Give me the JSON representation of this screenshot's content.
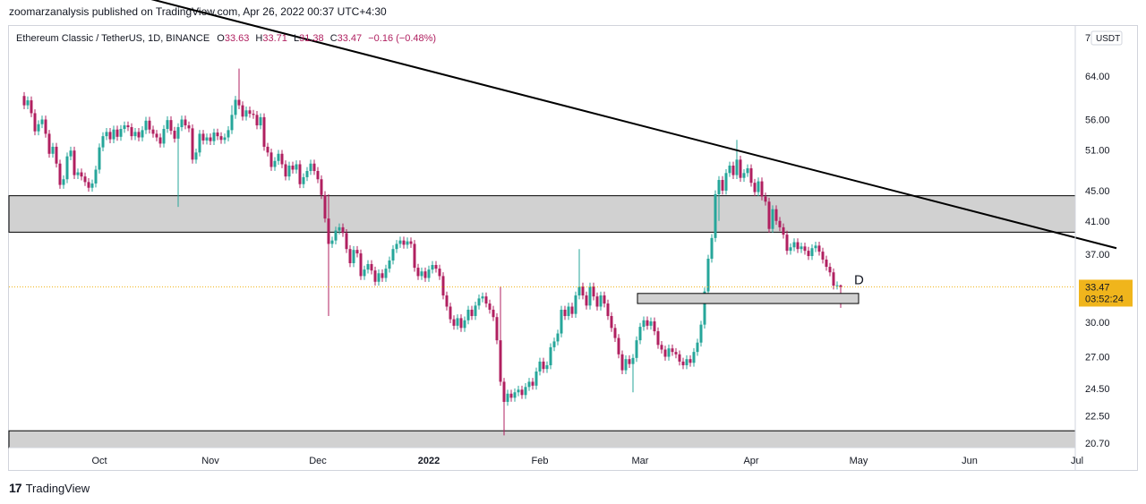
{
  "publisher_line": "zoomarzanalysis published on TradingView.com, Apr 26, 2022 00:37 UTC+4:30",
  "footer": {
    "logo_glyph": "17",
    "brand": "TradingView"
  },
  "chart_data": {
    "type": "candlestick",
    "header": {
      "symbol": "Ethereum Classic / TetherUS, 1D, BINANCE",
      "open_label": "O",
      "open": "33.63",
      "high_label": "H",
      "high": "33.71",
      "low_label": "L",
      "low": "31.38",
      "close_label": "C",
      "close": "33.47",
      "change": "−0.16 (−0.48%)"
    },
    "currency": "USDT",
    "scale": "log",
    "y_axis_ticks": [
      "64.00",
      "56.00",
      "51.00",
      "45.00",
      "41.00",
      "37.00",
      "30.00",
      "27.00",
      "24.50",
      "22.50",
      "20.70"
    ],
    "y_axis_top_partial": "7",
    "x_axis_ticks": [
      "Oct",
      "Nov",
      "Dec",
      "2022",
      "Feb",
      "Mar",
      "Apr",
      "May",
      "Jun",
      "Jul"
    ],
    "last_price_label": "33.47",
    "countdown_label": "03:52:24",
    "annotation_label": "D",
    "zones": [
      {
        "name": "resistance-zone",
        "low": 39.6,
        "high": 44.3
      },
      {
        "name": "support-zone",
        "low": 19.7,
        "high": 21.5
      }
    ],
    "small_box": {
      "start": "2022-03-01",
      "end": "2022-05-01",
      "low": 31.8,
      "high": 32.8
    },
    "trendline": {
      "start_date": "2021-09-01",
      "start_price": 92,
      "end_date": "2022-07-12",
      "end_price": 37.7
    },
    "colors": {
      "up": "#26a69a",
      "down": "#b02060",
      "wick": "#444444",
      "zone": "#d1d1d1",
      "last_price": "#f0b51c",
      "trendline": "#000000"
    },
    "candles": [
      [
        "2021-09-10",
        60.2,
        58.5
      ],
      [
        "2021-09-11",
        58.5,
        59.4
      ],
      [
        "2021-09-12",
        59.4,
        57.1
      ],
      [
        "2021-09-13",
        57.1,
        54.0
      ],
      [
        "2021-09-14",
        54.0,
        55.2
      ],
      [
        "2021-09-15",
        55.2,
        56.0
      ],
      [
        "2021-09-16",
        56.0,
        53.6
      ],
      [
        "2021-09-17",
        53.6,
        50.4
      ],
      [
        "2021-09-18",
        50.4,
        51.5
      ],
      [
        "2021-09-19",
        51.5,
        48.9
      ],
      [
        "2021-09-20",
        48.9,
        45.8
      ],
      [
        "2021-09-21",
        45.8,
        46.6
      ],
      [
        "2021-09-22",
        46.6,
        50.0
      ],
      [
        "2021-09-23",
        50.0,
        50.9
      ],
      [
        "2021-09-24",
        50.9,
        47.2
      ],
      [
        "2021-09-25",
        47.2,
        47.6
      ],
      [
        "2021-09-26",
        47.6,
        47.0
      ],
      [
        "2021-09-27",
        47.0,
        46.2
      ],
      [
        "2021-09-28",
        46.2,
        45.4
      ],
      [
        "2021-09-29",
        45.4,
        46.0
      ],
      [
        "2021-09-30",
        46.0,
        48.0
      ],
      [
        "2021-10-01",
        48.0,
        51.4
      ],
      [
        "2021-10-02",
        51.4,
        53.2
      ],
      [
        "2021-10-03",
        53.2,
        53.9
      ],
      [
        "2021-10-04",
        53.9,
        52.7
      ],
      [
        "2021-10-05",
        52.7,
        54.3
      ],
      [
        "2021-10-06",
        54.3,
        53.1
      ],
      [
        "2021-10-07",
        53.1,
        54.4
      ],
      [
        "2021-10-08",
        54.4,
        55.0
      ],
      [
        "2021-10-09",
        55.0,
        54.7
      ],
      [
        "2021-10-10",
        54.7,
        53.2
      ],
      [
        "2021-10-11",
        53.2,
        53.9
      ],
      [
        "2021-10-12",
        53.9,
        53.0
      ],
      [
        "2021-10-13",
        53.0,
        54.2
      ],
      [
        "2021-10-14",
        54.2,
        55.8
      ],
      [
        "2021-10-15",
        55.8,
        54.3
      ],
      [
        "2021-10-16",
        54.3,
        53.6
      ],
      [
        "2021-10-17",
        53.6,
        53.0
      ],
      [
        "2021-10-18",
        53.0,
        52.0
      ],
      [
        "2021-10-19",
        52.0,
        54.4
      ],
      [
        "2021-10-20",
        54.4,
        55.9
      ],
      [
        "2021-10-21",
        55.9,
        54.1
      ],
      [
        "2021-10-22",
        54.1,
        52.8
      ],
      [
        "2021-10-23",
        52.8,
        54.7
      ],
      [
        "2021-10-24",
        54.7,
        56.0
      ],
      [
        "2021-10-25",
        56.0,
        55.0
      ],
      [
        "2021-10-26",
        55.0,
        54.5
      ],
      [
        "2021-10-27",
        54.5,
        49.5
      ],
      [
        "2021-10-28",
        49.5,
        50.6
      ],
      [
        "2021-10-29",
        50.6,
        53.6
      ],
      [
        "2021-10-30",
        53.6,
        52.5
      ],
      [
        "2021-10-31",
        52.5,
        53.0
      ],
      [
        "2021-11-01",
        53.0,
        52.4
      ],
      [
        "2021-11-02",
        52.4,
        53.8
      ],
      [
        "2021-11-03",
        53.8,
        53.2
      ],
      [
        "2021-11-04",
        53.2,
        52.6
      ],
      [
        "2021-11-05",
        52.6,
        53.0
      ],
      [
        "2021-11-06",
        53.0,
        54.2
      ],
      [
        "2021-11-07",
        54.2,
        56.8
      ],
      [
        "2021-11-08",
        56.8,
        59.5
      ],
      [
        "2021-11-09",
        59.5,
        58.5
      ],
      [
        "2021-11-10",
        58.5,
        56.5
      ],
      [
        "2021-11-11",
        56.5,
        57.6
      ],
      [
        "2021-11-12",
        57.6,
        57.0
      ],
      [
        "2021-11-13",
        57.0,
        56.8
      ],
      [
        "2021-11-14",
        56.8,
        55.0
      ],
      [
        "2021-11-15",
        55.0,
        56.4
      ],
      [
        "2021-11-16",
        56.4,
        51.5
      ],
      [
        "2021-11-17",
        51.5,
        50.6
      ],
      [
        "2021-11-18",
        50.6,
        48.4
      ],
      [
        "2021-11-19",
        48.4,
        49.3
      ],
      [
        "2021-11-20",
        49.3,
        50.4
      ],
      [
        "2021-11-21",
        50.4,
        48.8
      ],
      [
        "2021-11-22",
        48.8,
        47.0
      ],
      [
        "2021-11-23",
        47.0,
        48.6
      ],
      [
        "2021-11-24",
        48.6,
        48.0
      ],
      [
        "2021-11-25",
        48.0,
        48.8
      ],
      [
        "2021-11-26",
        48.8,
        45.9
      ],
      [
        "2021-11-27",
        45.9,
        46.9
      ],
      [
        "2021-11-28",
        46.9,
        47.8
      ],
      [
        "2021-11-29",
        47.8,
        48.9
      ],
      [
        "2021-11-30",
        48.9,
        47.8
      ],
      [
        "2021-12-01",
        47.8,
        46.6
      ],
      [
        "2021-12-02",
        46.6,
        44.4
      ],
      [
        "2021-12-03",
        44.4,
        41.3
      ],
      [
        "2021-12-04",
        41.3,
        38.2
      ],
      [
        "2021-12-05",
        38.2,
        38.6
      ],
      [
        "2021-12-06",
        38.6,
        39.8
      ],
      [
        "2021-12-07",
        39.8,
        40.2
      ],
      [
        "2021-12-08",
        40.2,
        39.5
      ],
      [
        "2021-12-09",
        39.5,
        37.6
      ],
      [
        "2021-12-10",
        37.6,
        36.0
      ],
      [
        "2021-12-11",
        36.0,
        37.5
      ],
      [
        "2021-12-12",
        37.5,
        37.1
      ],
      [
        "2021-12-13",
        37.1,
        34.6
      ],
      [
        "2021-12-14",
        34.6,
        35.3
      ],
      [
        "2021-12-15",
        35.3,
        35.9
      ],
      [
        "2021-12-16",
        35.9,
        35.2
      ],
      [
        "2021-12-17",
        35.2,
        34.0
      ],
      [
        "2021-12-18",
        34.0,
        34.9
      ],
      [
        "2021-12-19",
        34.9,
        34.4
      ],
      [
        "2021-12-20",
        34.4,
        35.4
      ],
      [
        "2021-12-21",
        35.4,
        36.3
      ],
      [
        "2021-12-22",
        36.3,
        37.6
      ],
      [
        "2021-12-23",
        37.6,
        38.2
      ],
      [
        "2021-12-24",
        38.2,
        38.6
      ],
      [
        "2021-12-25",
        38.6,
        38.1
      ],
      [
        "2021-12-26",
        38.1,
        38.5
      ],
      [
        "2021-12-27",
        38.5,
        38.2
      ],
      [
        "2021-12-28",
        38.2,
        35.5
      ],
      [
        "2021-12-29",
        35.5,
        34.6
      ],
      [
        "2021-12-30",
        34.6,
        35.1
      ],
      [
        "2021-12-31",
        35.1,
        34.4
      ],
      [
        "2022-01-01",
        34.4,
        35.3
      ],
      [
        "2022-01-02",
        35.3,
        35.8
      ],
      [
        "2022-01-03",
        35.8,
        35.4
      ],
      [
        "2022-01-04",
        35.4,
        34.6
      ],
      [
        "2022-01-05",
        34.6,
        32.6
      ],
      [
        "2022-01-06",
        32.6,
        31.5
      ],
      [
        "2022-01-07",
        31.5,
        30.3
      ],
      [
        "2022-01-08",
        30.3,
        29.7
      ],
      [
        "2022-01-09",
        29.7,
        30.4
      ],
      [
        "2022-01-10",
        30.4,
        29.5
      ],
      [
        "2022-01-11",
        29.5,
        30.2
      ],
      [
        "2022-01-12",
        30.2,
        31.2
      ],
      [
        "2022-01-13",
        31.2,
        30.6
      ],
      [
        "2022-01-14",
        30.6,
        31.6
      ],
      [
        "2022-01-15",
        31.6,
        32.3
      ],
      [
        "2022-01-16",
        32.3,
        32.5
      ],
      [
        "2022-01-17",
        32.5,
        31.8
      ],
      [
        "2022-01-18",
        31.8,
        31.2
      ],
      [
        "2022-01-19",
        31.2,
        30.5
      ],
      [
        "2022-01-20",
        30.5,
        28.4
      ],
      [
        "2022-01-21",
        28.4,
        25.0
      ],
      [
        "2022-01-22",
        25.0,
        23.5
      ],
      [
        "2022-01-23",
        23.5,
        24.1
      ],
      [
        "2022-01-24",
        24.1,
        23.8
      ],
      [
        "2022-01-25",
        23.8,
        24.2
      ],
      [
        "2022-01-26",
        24.2,
        24.4
      ],
      [
        "2022-01-27",
        24.4,
        24.0
      ],
      [
        "2022-01-28",
        24.0,
        24.6
      ],
      [
        "2022-01-29",
        24.6,
        25.0
      ],
      [
        "2022-01-30",
        25.0,
        24.7
      ],
      [
        "2022-01-31",
        24.7,
        25.8
      ],
      [
        "2022-02-01",
        25.8,
        26.6
      ],
      [
        "2022-02-02",
        26.6,
        26.0
      ],
      [
        "2022-02-03",
        26.0,
        26.3
      ],
      [
        "2022-02-04",
        26.3,
        27.8
      ],
      [
        "2022-02-05",
        27.8,
        28.3
      ],
      [
        "2022-02-06",
        28.3,
        29.0
      ],
      [
        "2022-02-07",
        29.0,
        31.2
      ],
      [
        "2022-02-08",
        31.2,
        30.6
      ],
      [
        "2022-02-09",
        30.6,
        31.5
      ],
      [
        "2022-02-10",
        31.5,
        30.8
      ],
      [
        "2022-02-11",
        30.8,
        32.6
      ],
      [
        "2022-02-12",
        32.6,
        33.5
      ],
      [
        "2022-02-13",
        33.5,
        32.6
      ],
      [
        "2022-02-14",
        32.6,
        31.6
      ],
      [
        "2022-02-15",
        31.6,
        33.5
      ],
      [
        "2022-02-16",
        33.5,
        32.5
      ],
      [
        "2022-02-17",
        32.5,
        31.5
      ],
      [
        "2022-02-18",
        31.5,
        32.6
      ],
      [
        "2022-02-19",
        32.6,
        31.8
      ],
      [
        "2022-02-20",
        31.8,
        30.6
      ],
      [
        "2022-02-21",
        30.6,
        29.5
      ],
      [
        "2022-02-22",
        29.5,
        28.6
      ],
      [
        "2022-02-23",
        28.6,
        27.2
      ],
      [
        "2022-02-24",
        27.2,
        25.9
      ],
      [
        "2022-02-25",
        25.9,
        26.8
      ],
      [
        "2022-02-26",
        26.8,
        26.4
      ],
      [
        "2022-02-27",
        26.4,
        26.9
      ],
      [
        "2022-02-28",
        26.9,
        28.4
      ],
      [
        "2022-03-01",
        28.4,
        29.6
      ],
      [
        "2022-03-02",
        29.6,
        30.2
      ],
      [
        "2022-03-03",
        30.2,
        29.7
      ],
      [
        "2022-03-04",
        29.7,
        30.1
      ],
      [
        "2022-03-05",
        30.1,
        29.2
      ],
      [
        "2022-03-06",
        29.2,
        28.0
      ],
      [
        "2022-03-07",
        28.0,
        27.6
      ],
      [
        "2022-03-08",
        27.6,
        27.0
      ],
      [
        "2022-03-09",
        27.0,
        27.7
      ],
      [
        "2022-03-10",
        27.7,
        27.4
      ],
      [
        "2022-03-11",
        27.4,
        27.2
      ],
      [
        "2022-03-12",
        27.2,
        26.6
      ],
      [
        "2022-03-13",
        26.6,
        26.3
      ],
      [
        "2022-03-14",
        26.3,
        26.8
      ],
      [
        "2022-03-15",
        26.8,
        26.5
      ],
      [
        "2022-03-16",
        26.5,
        27.4
      ],
      [
        "2022-03-17",
        27.4,
        28.2
      ],
      [
        "2022-03-18",
        28.2,
        29.8
      ],
      [
        "2022-03-19",
        29.8,
        33.0
      ],
      [
        "2022-03-20",
        33.0,
        36.5
      ],
      [
        "2022-03-21",
        36.5,
        38.9
      ],
      [
        "2022-03-22",
        38.9,
        44.5
      ],
      [
        "2022-03-23",
        44.5,
        46.5
      ],
      [
        "2022-03-24",
        46.5,
        45.0
      ],
      [
        "2022-03-25",
        45.0,
        47.5
      ],
      [
        "2022-03-26",
        47.5,
        48.6
      ],
      [
        "2022-03-27",
        48.6,
        47.2
      ],
      [
        "2022-03-28",
        47.2,
        49.5
      ],
      [
        "2022-03-29",
        49.5,
        46.8
      ],
      [
        "2022-03-30",
        46.8,
        47.5
      ],
      [
        "2022-03-31",
        47.5,
        48.2
      ],
      [
        "2022-04-01",
        48.2,
        46.1
      ],
      [
        "2022-04-02",
        46.1,
        44.8
      ],
      [
        "2022-04-03",
        44.8,
        46.3
      ],
      [
        "2022-04-04",
        46.3,
        44.2
      ],
      [
        "2022-04-05",
        44.2,
        43.5
      ],
      [
        "2022-04-06",
        43.5,
        40.0
      ],
      [
        "2022-04-07",
        40.0,
        42.5
      ],
      [
        "2022-04-08",
        42.5,
        41.0
      ],
      [
        "2022-04-09",
        41.0,
        40.2
      ],
      [
        "2022-04-10",
        40.2,
        39.3
      ],
      [
        "2022-04-11",
        39.3,
        37.4
      ],
      [
        "2022-04-12",
        37.4,
        37.8
      ],
      [
        "2022-04-13",
        37.8,
        38.4
      ],
      [
        "2022-04-14",
        38.4,
        37.6
      ],
      [
        "2022-04-15",
        37.6,
        37.9
      ],
      [
        "2022-04-16",
        37.9,
        37.4
      ],
      [
        "2022-04-17",
        37.4,
        36.8
      ],
      [
        "2022-04-18",
        36.8,
        37.7
      ],
      [
        "2022-04-19",
        37.7,
        38.0
      ],
      [
        "2022-04-20",
        38.0,
        37.3
      ],
      [
        "2022-04-21",
        37.3,
        36.4
      ],
      [
        "2022-04-22",
        36.4,
        35.6
      ],
      [
        "2022-04-23",
        35.6,
        35.0
      ],
      [
        "2022-04-24",
        35.0,
        33.6
      ],
      [
        "2022-04-25",
        33.6,
        33.63
      ],
      [
        "2022-04-26",
        33.63,
        33.47
      ]
    ],
    "wick_extremes": [
      {
        "date": "2021-11-09",
        "high": 65.5
      },
      {
        "date": "2021-11-07",
        "high": 58.5
      },
      {
        "date": "2021-10-23",
        "low": 42.8
      },
      {
        "date": "2021-12-04",
        "low": 30.6
      },
      {
        "date": "2021-12-04",
        "high": 44.5
      },
      {
        "date": "2022-01-22",
        "low": 21.2
      },
      {
        "date": "2022-01-21",
        "high": 33.5
      },
      {
        "date": "2022-02-12",
        "high": 37.6
      },
      {
        "date": "2022-02-27",
        "low": 24.2
      },
      {
        "date": "2022-03-28",
        "high": 52.6
      },
      {
        "date": "2022-03-23",
        "low": 41.0
      },
      {
        "date": "2022-04-26",
        "low": 31.38
      },
      {
        "date": "2022-04-26",
        "high": 33.71
      }
    ]
  }
}
